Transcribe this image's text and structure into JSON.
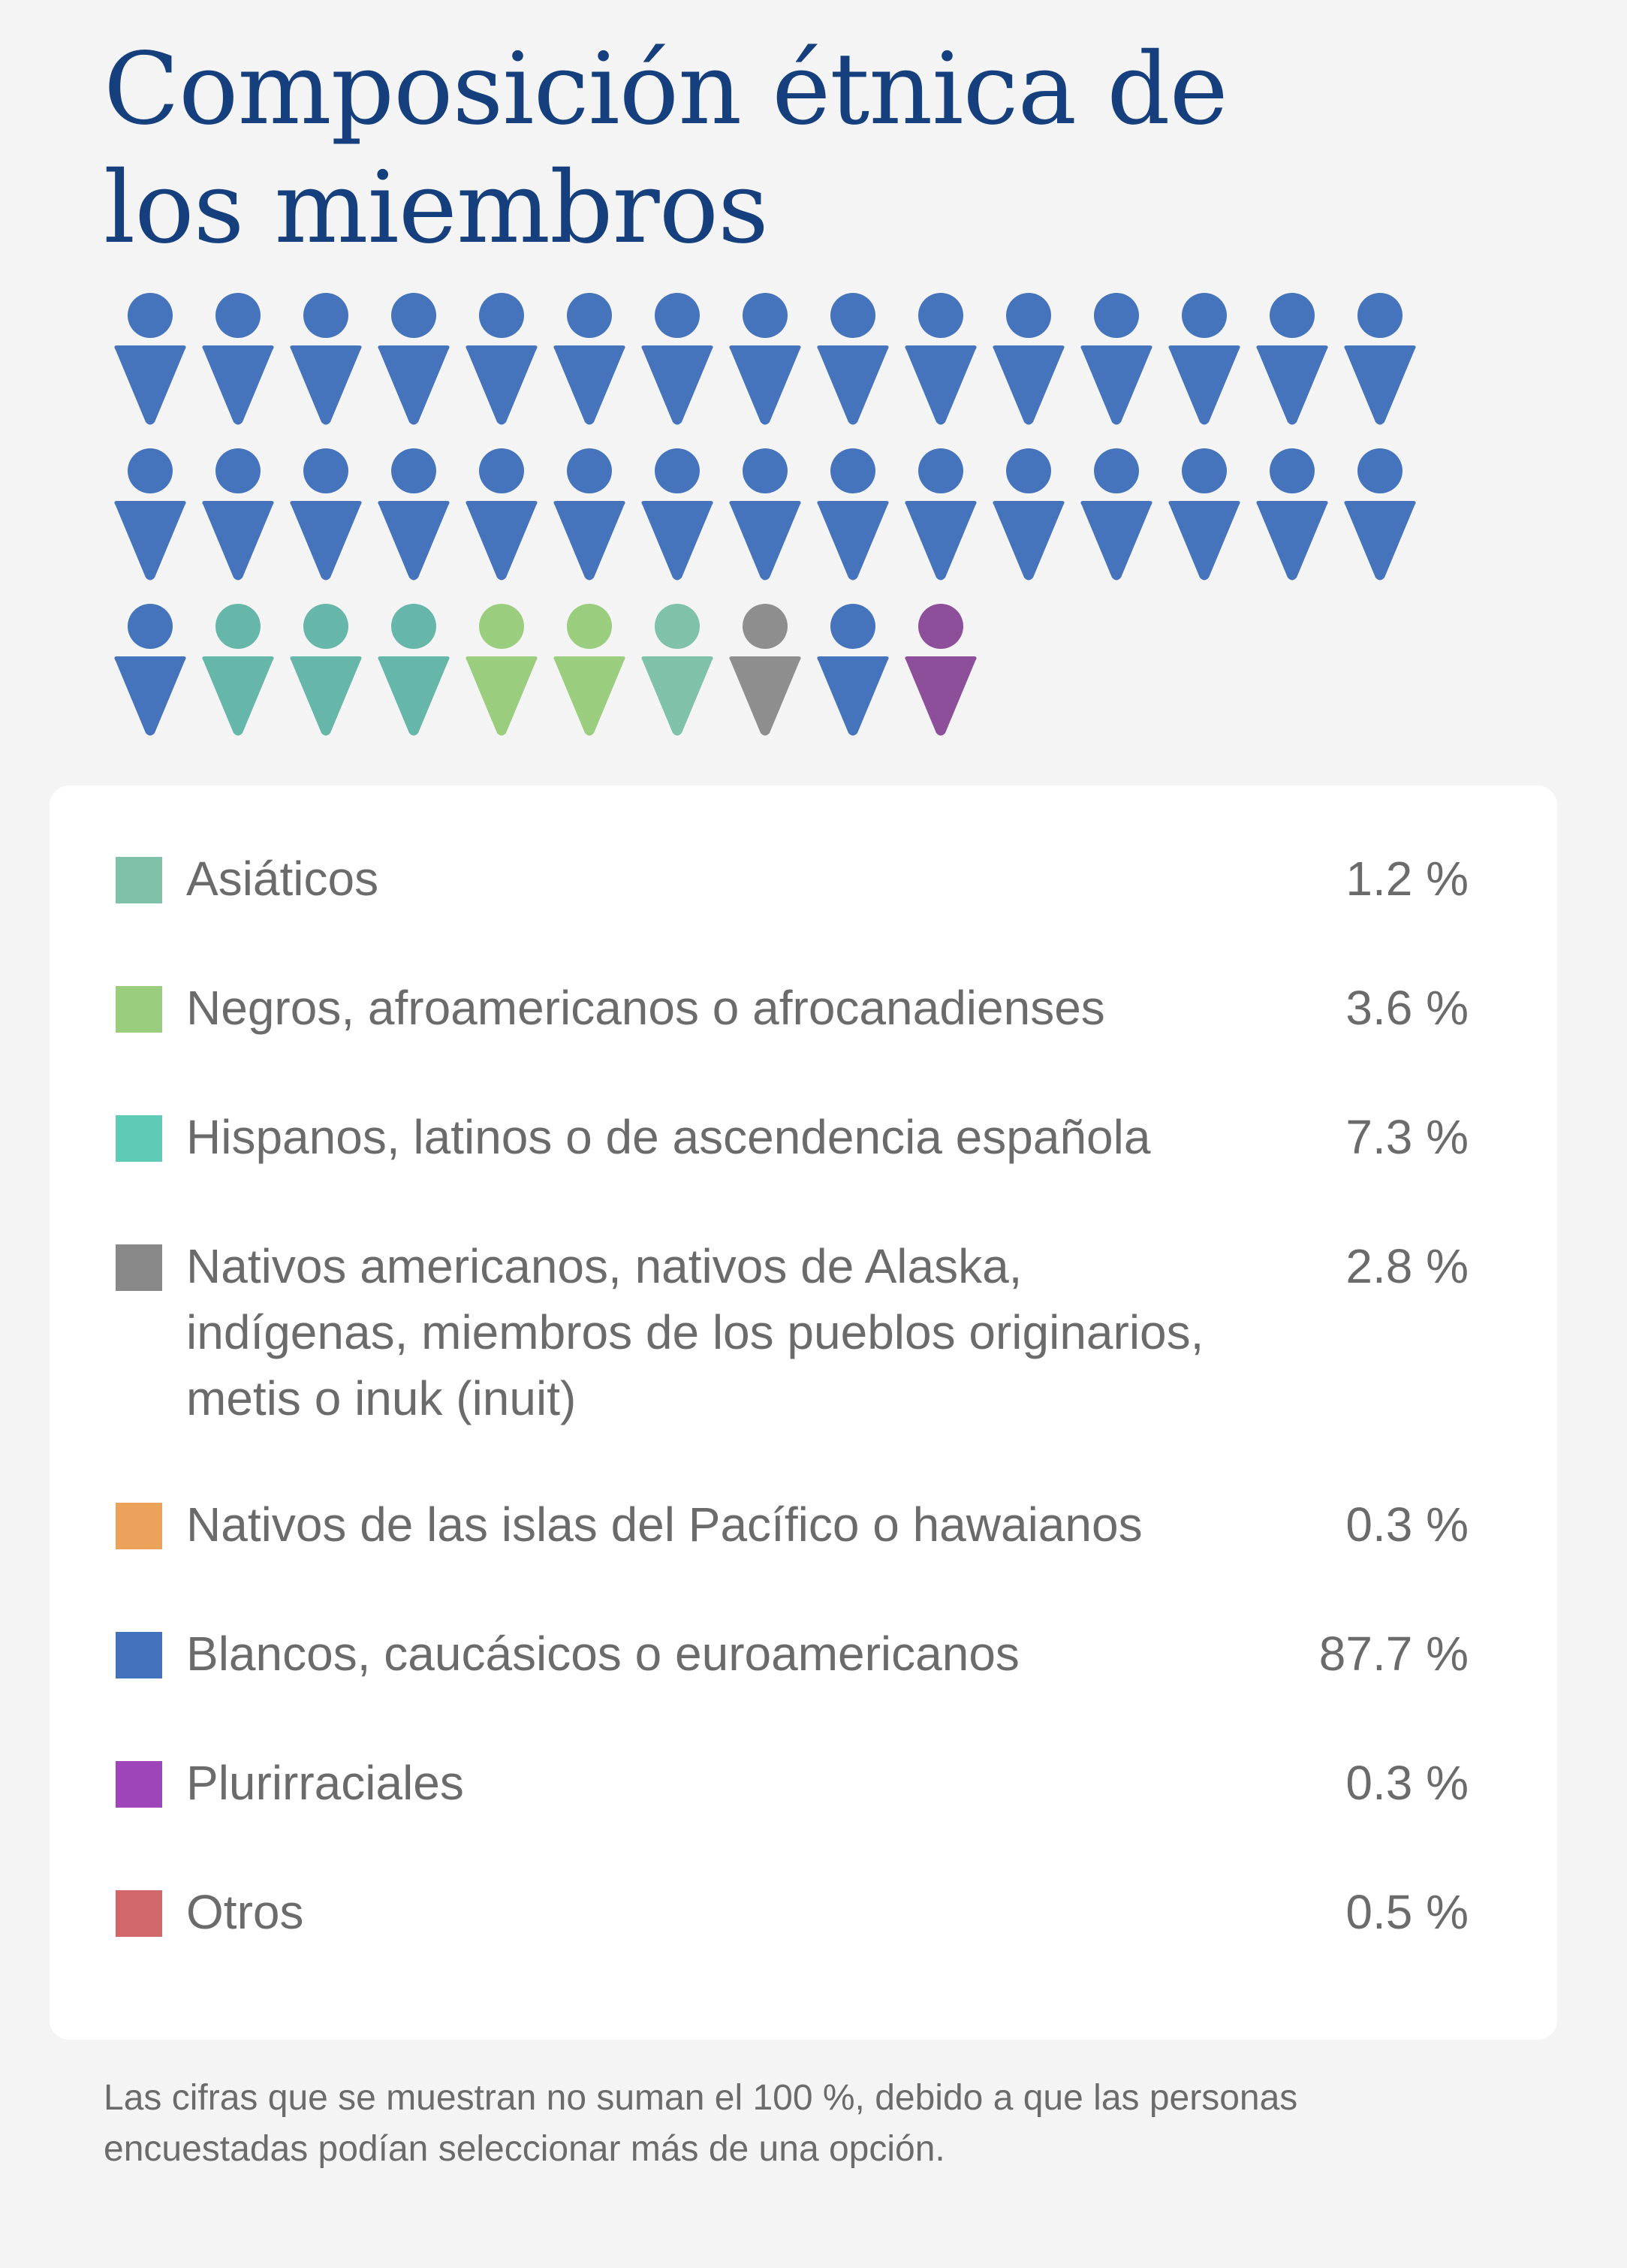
{
  "title_lines": [
    "Composición étnica de",
    "los miembros"
  ],
  "chart_data": {
    "type": "pictogram",
    "total_icons": 40,
    "icons": [
      "white",
      "white",
      "white",
      "white",
      "white",
      "white",
      "white",
      "white",
      "white",
      "white",
      "white",
      "white",
      "white",
      "white",
      "white",
      "white",
      "white",
      "white",
      "white",
      "white",
      "white",
      "white",
      "white",
      "white",
      "white",
      "white",
      "white",
      "white",
      "white",
      "white",
      "white",
      "hispanic",
      "hispanic",
      "hispanic",
      "black",
      "black",
      "asian",
      "native",
      "white",
      "multiracial"
    ],
    "categories": [
      {
        "key": "asian",
        "label": "Asiáticos",
        "value": "1.2 %",
        "swatch_color": "#7fc1a9",
        "icon_color": "#7fc1a9"
      },
      {
        "key": "black",
        "label": "Negros, afroamericanos o afrocanadienses",
        "value": "3.6 %",
        "swatch_color": "#9bcd7e",
        "icon_color": "#9bcd7e"
      },
      {
        "key": "hispanic",
        "label": "Hispanos, latinos o de ascendencia española",
        "value": "7.3 %",
        "swatch_color": "#5fcab5",
        "icon_color": "#66b7a9"
      },
      {
        "key": "native",
        "label": "Nativos americanos, nativos de Alaska,\nindígenas, miembros de los pueblos originarios,\nmetis o inuk (inuit)",
        "value": "2.8 %",
        "swatch_color": "#898989",
        "icon_color": "#8e8e8e"
      },
      {
        "key": "pacific",
        "label": "Nativos de las islas del Pacífico o hawaianos",
        "value": "0.3 %",
        "swatch_color": "#eba25a",
        "icon_color": "#eba25a"
      },
      {
        "key": "white",
        "label": "Blancos, caucásicos o euroamericanos",
        "value": "87.7 %",
        "swatch_color": "#4572bd",
        "icon_color": "#4574bc"
      },
      {
        "key": "multiracial",
        "label": "Plurirraciales",
        "value": "0.3 %",
        "swatch_color": "#9d45b9",
        "icon_color": "#8e4f9a"
      },
      {
        "key": "other",
        "label": "Otros",
        "value": "0.5 %",
        "swatch_color": "#d1666b",
        "icon_color": "#d1666b"
      }
    ]
  },
  "footnote": "Las cifras que se muestran no suman el 100 %, debido a que las personas\nencuestadas podían seleccionar más de una opción."
}
